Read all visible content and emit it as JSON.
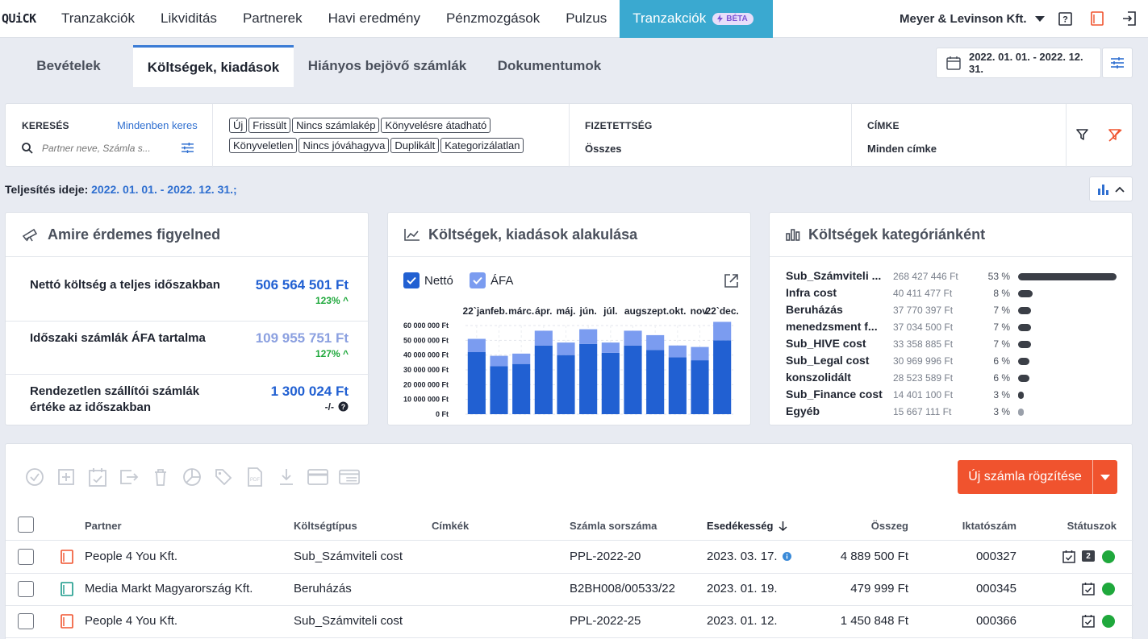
{
  "app": {
    "logo": "QUiCK"
  },
  "nav": {
    "items": [
      "Tranzakciók",
      "Likviditás",
      "Partnerek",
      "Havi eredmény",
      "Pénzmozgások",
      "Pulzus"
    ],
    "active": "Tranzakciók",
    "beta": "BÉTA",
    "company": "Meyer & Levinson Kft."
  },
  "subtabs": [
    "Bevételek",
    "Költségek, kiadások",
    "Hiányos bejövő számlák",
    "Dokumentumok"
  ],
  "date_range": "2022. 01. 01. - 2022. 12. 31.",
  "filters": {
    "search_label": "KERESÉS",
    "search_everywhere": "Mindenben keres",
    "search_placeholder": "Partner neve, Számla s...",
    "chips_row1": [
      "Új",
      "Frissült",
      "Nincs számlakép",
      "Könyvelésre átadható"
    ],
    "chips_row2": [
      "Könyveletlen",
      "Nincs jóváhagyva",
      "Duplikált",
      "Kategorizálatlan"
    ],
    "payment_label": "FIZETETTSÉG",
    "payment_value": "Összes",
    "tag_label": "CÍMKE",
    "tag_value": "Minden címke"
  },
  "completion": {
    "label": "Teljesítés ideje:",
    "value": "2022. 01. 01. - 2022. 12. 31.;"
  },
  "card1": {
    "title": "Amire érdemes figyelned",
    "kpis": [
      {
        "label": "Nettó költség a teljes időszakban",
        "value": "506 564 501 Ft",
        "sub": "123% ^"
      },
      {
        "label": "Időszaki számlák ÁFA tartalma",
        "value": "109 955 751 Ft",
        "sub": "127% ^"
      },
      {
        "label1": "Rendezetlen szállítói számlák",
        "label2": "értéke az időszakban",
        "value": "1 300 024 Ft",
        "sub": "-/-"
      }
    ]
  },
  "card2": {
    "title": "Költségek, kiadások alakulása",
    "legend": [
      "Nettó",
      "ÁFA"
    ]
  },
  "chart_data": {
    "type": "bar",
    "categories": [
      "22`jan",
      "feb.",
      "márc.",
      "ápr.",
      "máj.",
      "jún.",
      "júl.",
      "aug",
      "szept.",
      "okt.",
      "nov.",
      "22`dec."
    ],
    "series": [
      {
        "name": "Nettó",
        "values": [
          42000000,
          32500000,
          34000000,
          46500000,
          40000000,
          47500000,
          41500000,
          46500000,
          43500000,
          38500000,
          36500000,
          50000000
        ]
      },
      {
        "name": "ÁFA",
        "values": [
          9000000,
          7000000,
          7000000,
          10000000,
          8500000,
          10000000,
          7000000,
          10000000,
          10000000,
          8000000,
          9000000,
          12500000
        ]
      }
    ],
    "yticks": [
      "0 Ft",
      "10 000 000 Ft",
      "20 000 000 Ft",
      "30 000 000 Ft",
      "40 000 000 Ft",
      "50 000 000 Ft",
      "60 000 000 Ft"
    ],
    "ylim": [
      0,
      60000000
    ],
    "stacked": true,
    "grid": true,
    "colors": {
      "netto": "#2160d2",
      "afa": "#7b9cf0"
    }
  },
  "card3": {
    "title": "Költségek kategóriánként",
    "rows": [
      {
        "name": "Sub_Számviteli ...",
        "amount": "268 427 446 Ft",
        "pct": "53 %",
        "frac": 0.53
      },
      {
        "name": "Infra cost",
        "amount": "40 411 477 Ft",
        "pct": "8 %",
        "frac": 0.08
      },
      {
        "name": "Beruházás",
        "amount": "37 770 397 Ft",
        "pct": "7 %",
        "frac": 0.07
      },
      {
        "name": "menedzsment f...",
        "amount": "37 034 500 Ft",
        "pct": "7 %",
        "frac": 0.07
      },
      {
        "name": "Sub_HIVE cost",
        "amount": "33 358 885 Ft",
        "pct": "7 %",
        "frac": 0.07
      },
      {
        "name": "Sub_Legal cost",
        "amount": "30 969 996 Ft",
        "pct": "6 %",
        "frac": 0.06
      },
      {
        "name": "konszolidált",
        "amount": "28 523 589 Ft",
        "pct": "6 %",
        "frac": 0.06
      },
      {
        "name": "Sub_Finance cost",
        "amount": "14 401 100 Ft",
        "pct": "3 %",
        "frac": 0.03
      },
      {
        "name": "Egyéb",
        "amount": "15 667 111 Ft",
        "pct": "3 %",
        "frac": 0.03
      }
    ]
  },
  "table": {
    "new_button": "Új számla rögzítése",
    "headers": {
      "partner": "Partner",
      "cost_type": "Költségtípus",
      "tags": "Címkék",
      "invoice_no": "Számla sorszáma",
      "due": "Esedékesség",
      "amount": "Összeg",
      "filing_no": "Iktatószám",
      "status": "Státuszok"
    },
    "rows": [
      {
        "partner": "People 4 You Kft.",
        "cost_type": "Sub_Számviteli cost",
        "invoice_no": "PPL-2022-20",
        "due": "2023. 03. 17.",
        "amount": "4 889 500 Ft",
        "filing_no": "000327",
        "badge": "2",
        "doc_color": "#f0532e"
      },
      {
        "partner": "Media Markt Magyarország Kft.",
        "cost_type": "Beruházás",
        "invoice_no": "B2BH008/00533/22",
        "due": "2023. 01. 19.",
        "amount": "479 999 Ft",
        "filing_no": "000345",
        "badge": "",
        "doc_color": "#1a9a8a"
      },
      {
        "partner": "People 4 You Kft.",
        "cost_type": "Sub_Számviteli cost",
        "invoice_no": "PPL-2022-25",
        "due": "2023. 01. 12.",
        "amount": "1 450 848 Ft",
        "filing_no": "000366",
        "badge": "",
        "doc_color": "#f0532e"
      }
    ]
  }
}
